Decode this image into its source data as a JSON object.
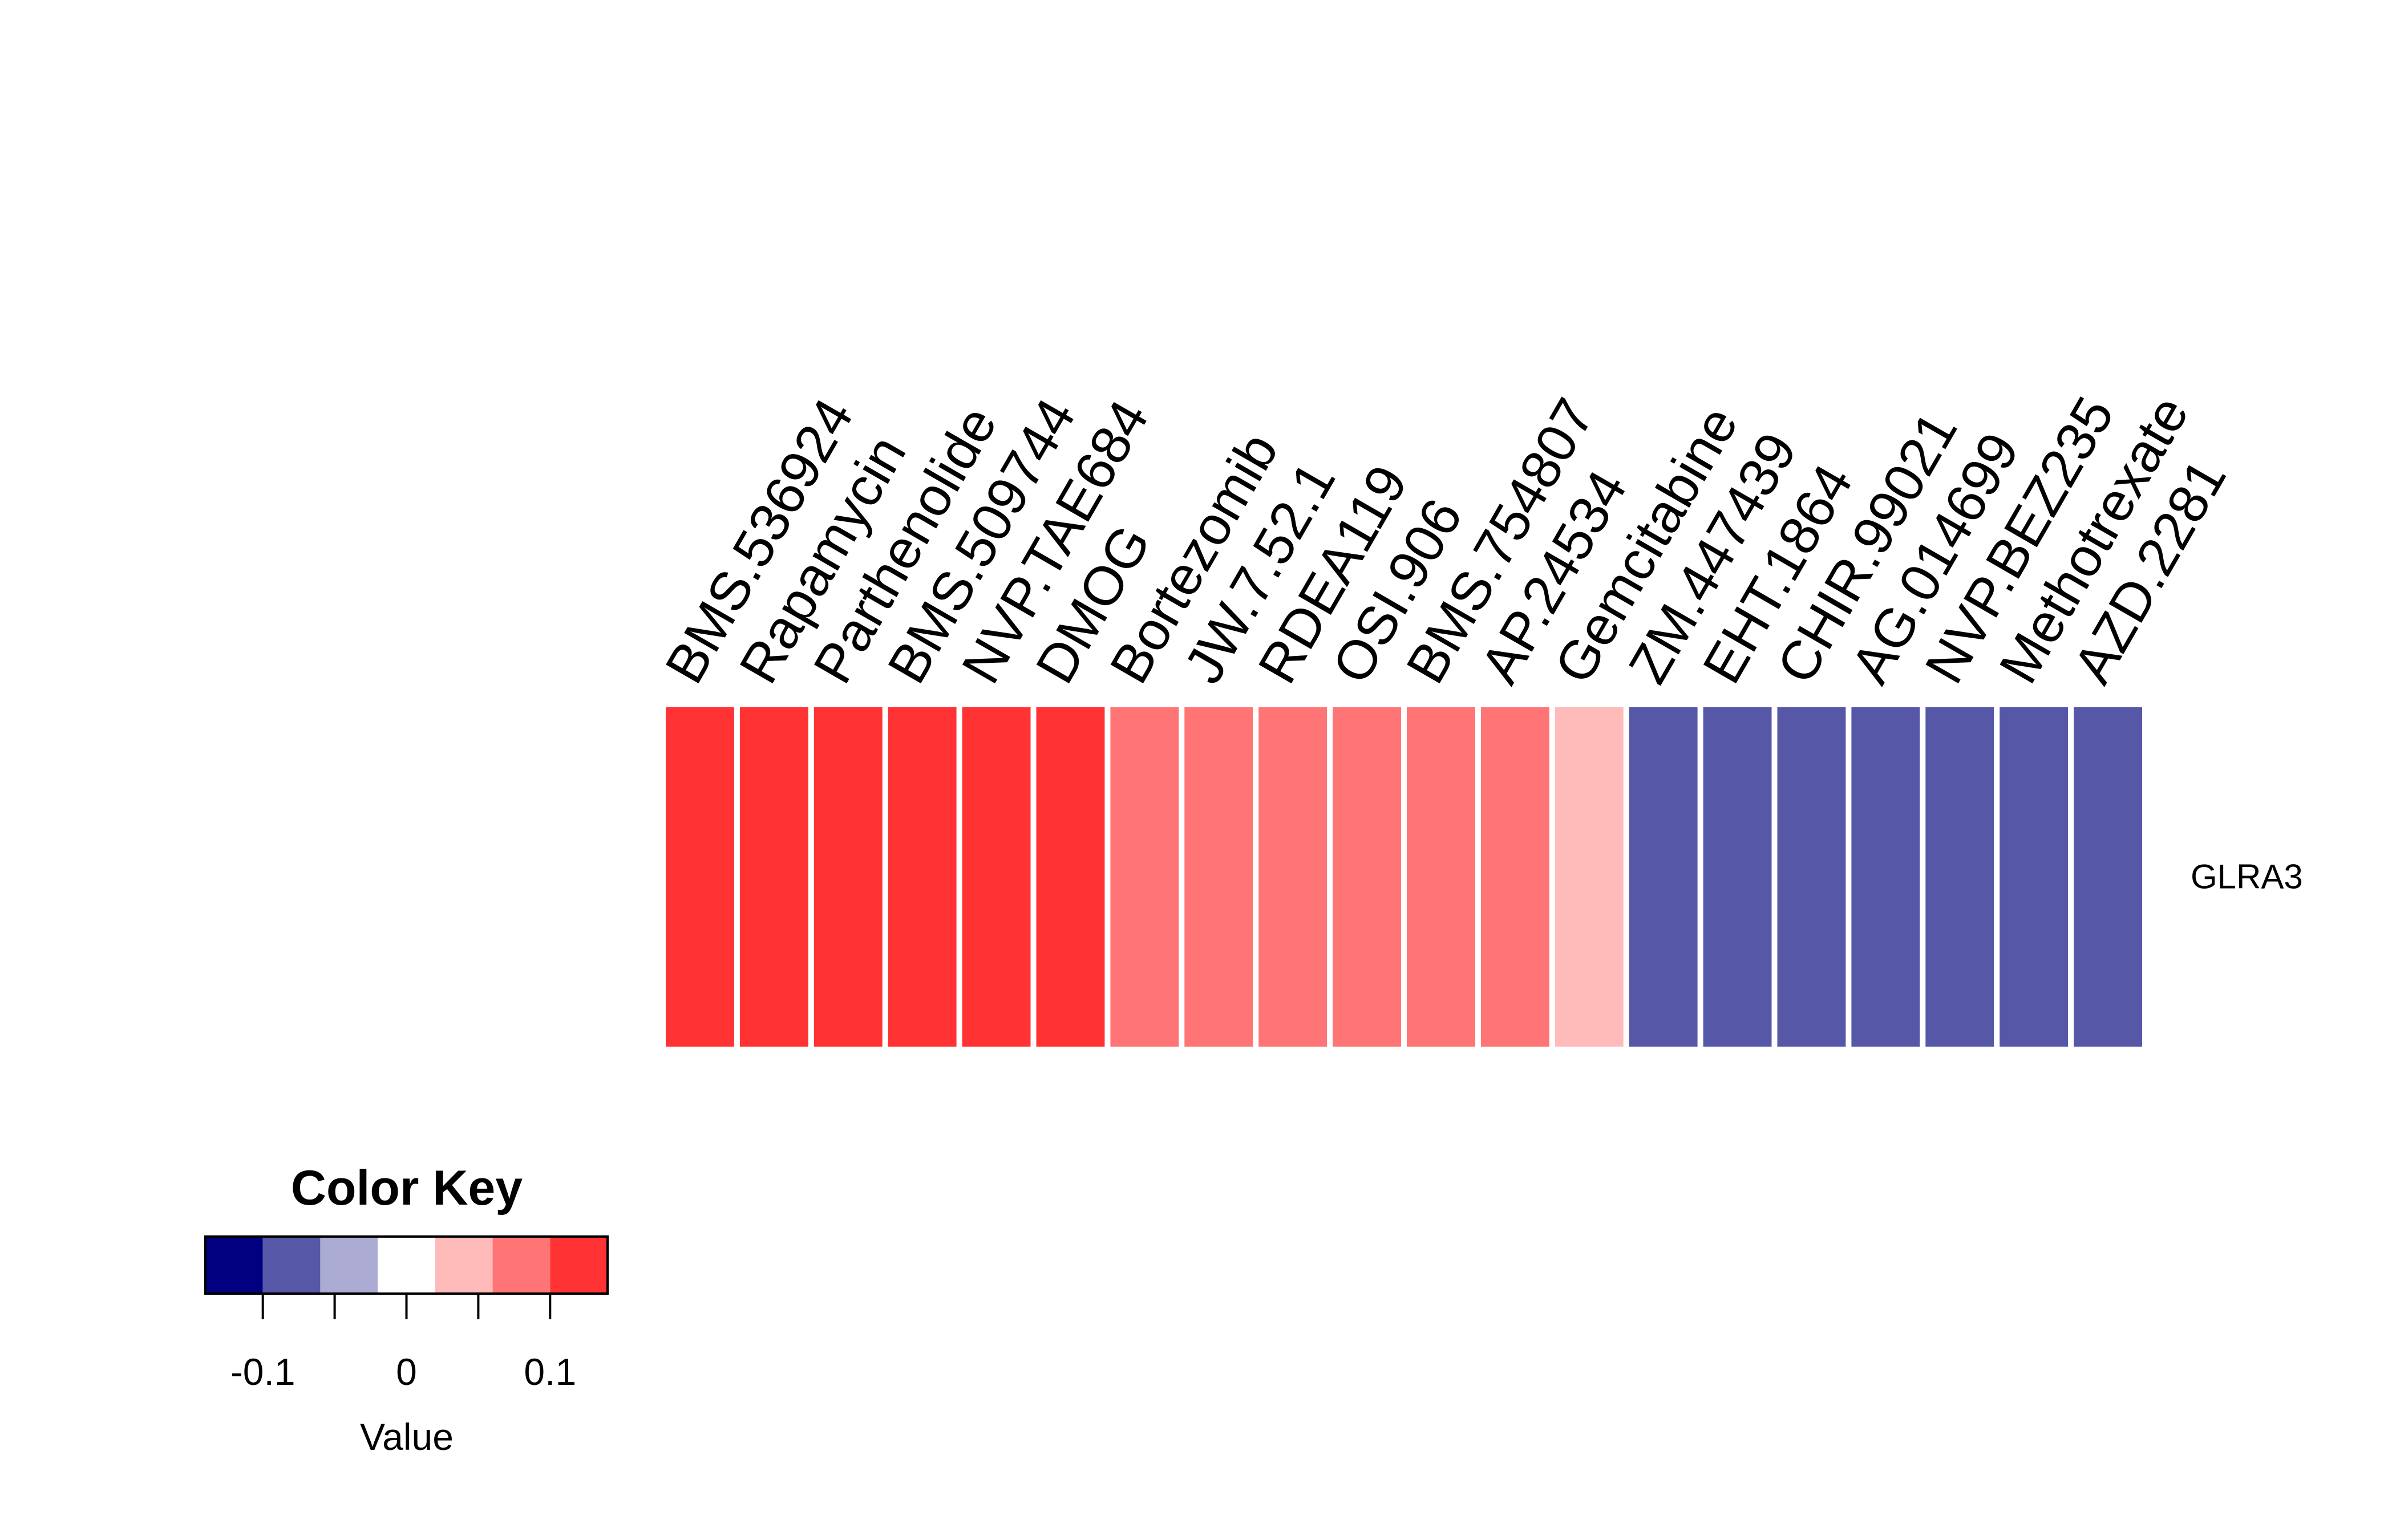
{
  "chart_data": {
    "type": "heatmap",
    "rows": [
      "GLRA3"
    ],
    "columns": [
      "BMS.536924",
      "Rapamycin",
      "Parthenolide",
      "BMS.509744",
      "NVP.TAE684",
      "DMOG",
      "Bortezomib",
      "JW.7.52.1",
      "RDEA119",
      "OSI.906",
      "BMS.754807",
      "AP.24534",
      "Gemcitabine",
      "ZM.447439",
      "EHT.1864",
      "CHIR.99021",
      "AG.014699",
      "NVP.BEZ235",
      "Methotrexate",
      "AZD.2281"
    ],
    "values": [
      [
        0.12,
        0.12,
        0.12,
        0.12,
        0.12,
        0.12,
        0.07,
        0.07,
        0.07,
        0.07,
        0.07,
        0.07,
        0.03,
        -0.08,
        -0.08,
        -0.08,
        -0.08,
        -0.08,
        -0.08,
        -0.08
      ]
    ],
    "color_key": {
      "title": "Color Key",
      "xlabel": "Value",
      "range": [
        -0.14,
        0.14
      ],
      "breaks": [
        -0.14,
        -0.1,
        -0.06,
        -0.02,
        0.02,
        0.06,
        0.1,
        0.14
      ],
      "colors": [
        "#000080",
        "#5757A8",
        "#ABABD3",
        "#FFFFFF",
        "#FFBABA",
        "#FF7575",
        "#FF3333"
      ],
      "ticks": [
        -0.1,
        -0.05,
        0,
        0.05,
        0.1
      ],
      "tick_labels": [
        "-0.1",
        "",
        "0",
        "",
        "0.1"
      ]
    }
  }
}
